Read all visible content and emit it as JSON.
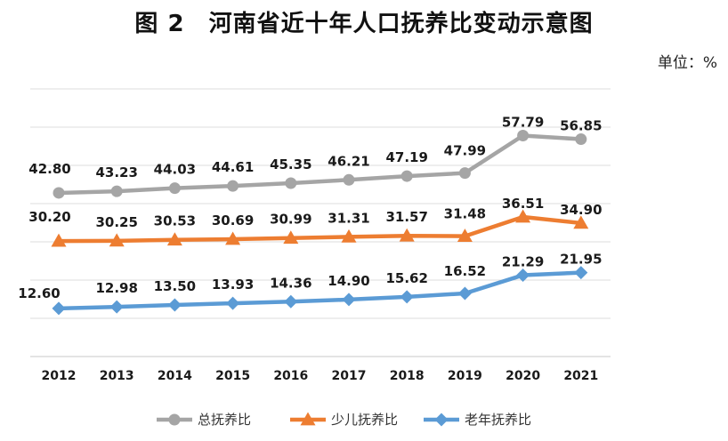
{
  "chart_data": {
    "type": "line",
    "title": "图 2　河南省近十年人口抚养比变动示意图",
    "unit_label": "单位：%",
    "x": [
      "2012",
      "2013",
      "2014",
      "2015",
      "2016",
      "2017",
      "2018",
      "2019",
      "2020",
      "2021"
    ],
    "ylim": [
      0,
      70
    ],
    "grid": true,
    "legend_position": "bottom",
    "series": [
      {
        "name": "总抚养比",
        "color": "#A5A5A5",
        "marker": "circle",
        "values": [
          42.8,
          43.23,
          44.03,
          44.61,
          45.35,
          46.21,
          47.19,
          47.99,
          57.79,
          56.85
        ]
      },
      {
        "name": "少儿抚养比",
        "color": "#ED7D31",
        "marker": "triangle",
        "values": [
          30.2,
          30.25,
          30.53,
          30.69,
          30.99,
          31.31,
          31.57,
          31.48,
          36.51,
          34.9
        ]
      },
      {
        "name": "老年抚养比",
        "color": "#5B9BD5",
        "marker": "diamond",
        "values": [
          12.6,
          12.98,
          13.5,
          13.93,
          14.36,
          14.9,
          15.62,
          16.52,
          21.29,
          21.95
        ]
      }
    ]
  }
}
